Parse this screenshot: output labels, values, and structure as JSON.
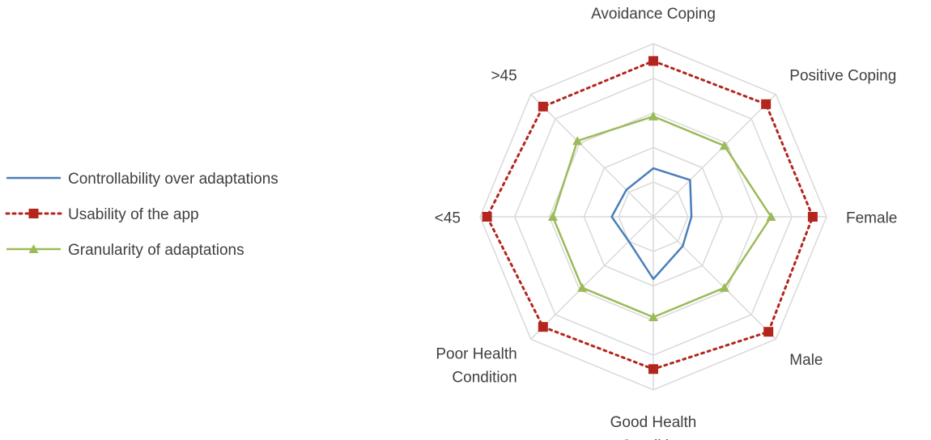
{
  "chart_data": {
    "type": "radar",
    "title": "",
    "categories": [
      "Avoidance Coping",
      "Positive Coping",
      "Female",
      "Male",
      "Good Health Condition",
      "Poor Health Condition",
      "<45",
      ">45"
    ],
    "category_lines": [
      [
        "Avoidance Coping"
      ],
      [
        "Positive Coping"
      ],
      [
        "Female"
      ],
      [
        "Male"
      ],
      [
        "Good Health",
        "Condition"
      ],
      [
        "Poor Health",
        "Condition"
      ],
      [
        "<45"
      ],
      [
        ">45"
      ]
    ],
    "rlim": [
      0,
      5
    ],
    "rings": 5,
    "grid": true,
    "legend_position": "left",
    "series": [
      {
        "name": "Controllability over adaptations",
        "color": "#4a7ebb",
        "style": "solid",
        "marker": "none",
        "values": [
          1.4,
          1.5,
          1.1,
          1.2,
          1.8,
          1.0,
          1.2,
          1.1
        ]
      },
      {
        "name": "Usability of the app",
        "color": "#b3261e",
        "style": "dotted",
        "marker": "square",
        "values": [
          4.5,
          4.6,
          4.6,
          4.7,
          4.4,
          4.5,
          4.8,
          4.5
        ]
      },
      {
        "name": "Granularity of adaptations",
        "color": "#9bbb59",
        "style": "solid",
        "marker": "triangle",
        "values": [
          2.9,
          2.9,
          3.4,
          2.9,
          2.9,
          2.9,
          2.9,
          3.1
        ]
      }
    ]
  }
}
